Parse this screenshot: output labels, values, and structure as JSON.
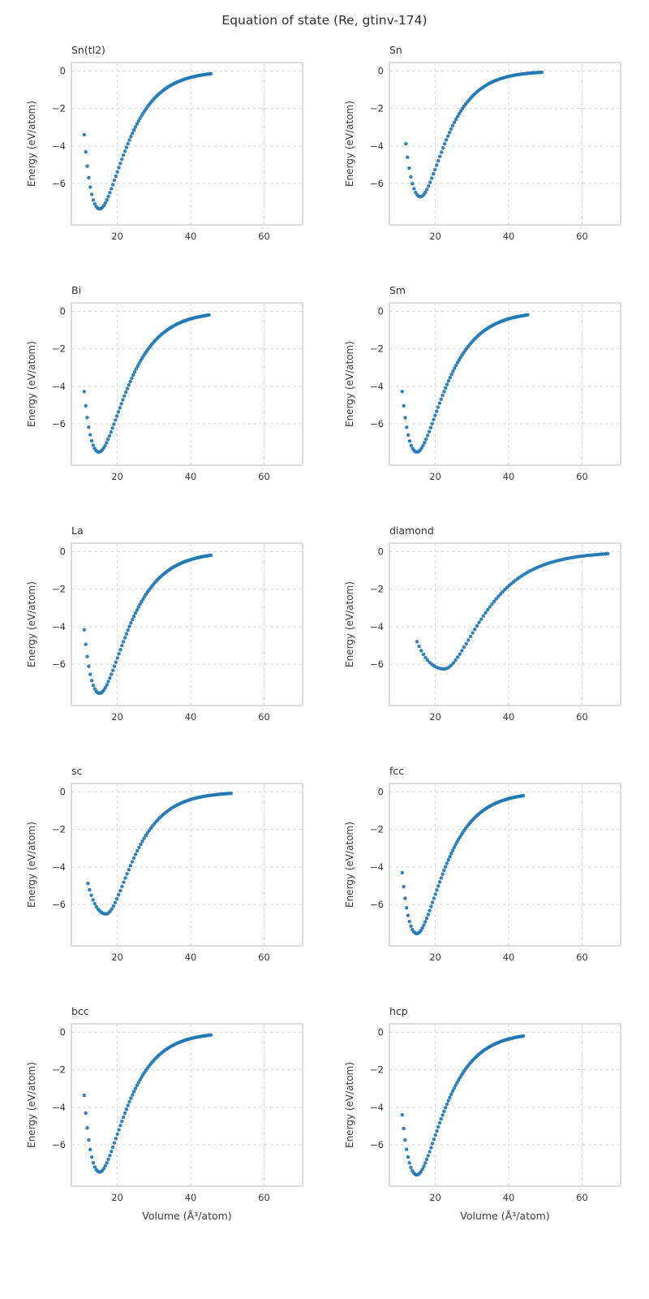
{
  "figure": {
    "title": "Equation of state (Re, gtinv-174)"
  },
  "colors": {
    "marker": "#1f77b4",
    "grid": "#d9d9d9",
    "frame": "#c9c9c9",
    "text": "#3b3b3b"
  },
  "chart_data": {
    "type": "scatter",
    "title": "Equation of state (Re, gtinv-174)",
    "xlabel": "Volume (Å³/atom)",
    "ylabel": "Energy (eV/atom)",
    "xlim": [
      7.5,
      70.5
    ],
    "ylim": [
      -8.2,
      0.45
    ],
    "xticks": [
      20,
      40,
      60
    ],
    "yticks": [
      0,
      -2,
      -4,
      -6
    ],
    "grid": true,
    "grid_style": "dashed",
    "legend": "none",
    "marker_color": "#1f77b4",
    "layout": {
      "rows": 5,
      "cols": 2,
      "shared_x": true,
      "shared_y": true
    },
    "panels": [
      {
        "name": "Sn(tl2)",
        "eos": {
          "e_min": -7.35,
          "v0": 15.2,
          "a_left": 0.131,
          "a_right": 0.151,
          "v_start": 11.0,
          "v_end": 45.5,
          "n_points": 85
        }
      },
      {
        "name": "Sn",
        "eos": {
          "e_min": -6.7,
          "v0": 16.0,
          "a_left": 0.125,
          "a_right": 0.159,
          "v_start": 12.0,
          "v_end": 49.0,
          "n_points": 85
        }
      },
      {
        "name": "Bi",
        "eos": {
          "e_min": -7.5,
          "v0": 15.0,
          "a_left": 0.126,
          "a_right": 0.144,
          "v_start": 11.0,
          "v_end": 45.0,
          "n_points": 85
        }
      },
      {
        "name": "Sm",
        "eos": {
          "e_min": -7.5,
          "v0": 15.0,
          "a_left": 0.126,
          "a_right": 0.144,
          "v_start": 11.0,
          "v_end": 45.2,
          "n_points": 85
        }
      },
      {
        "name": "La",
        "eos": {
          "e_min": -7.55,
          "v0": 15.2,
          "a_left": 0.122,
          "a_right": 0.143,
          "v_start": 11.0,
          "v_end": 45.5,
          "n_points": 85
        }
      },
      {
        "name": "diamond",
        "eos": {
          "e_min": -6.25,
          "v0": 22.5,
          "a_left": 0.0525,
          "a_right": 0.105,
          "v_start": 15.0,
          "v_end": 67.0,
          "n_points": 90
        }
      },
      {
        "name": "sc",
        "eos": {
          "e_min": -6.5,
          "v0": 17.0,
          "a_left": 0.081,
          "a_right": 0.15,
          "v_start": 12.0,
          "v_end": 51.0,
          "n_points": 85
        }
      },
      {
        "name": "fcc",
        "eos": {
          "e_min": -7.55,
          "v0": 15.0,
          "a_left": 0.126,
          "a_right": 0.149,
          "v_start": 11.0,
          "v_end": 44.0,
          "n_points": 85
        }
      },
      {
        "name": "bcc",
        "eos": {
          "e_min": -7.45,
          "v0": 15.2,
          "a_left": 0.132,
          "a_right": 0.152,
          "v_start": 11.0,
          "v_end": 45.5,
          "n_points": 85
        }
      },
      {
        "name": "hcp",
        "eos": {
          "e_min": -7.6,
          "v0": 15.0,
          "a_left": 0.125,
          "a_right": 0.149,
          "v_start": 11.0,
          "v_end": 44.0,
          "n_points": 85
        }
      }
    ]
  }
}
